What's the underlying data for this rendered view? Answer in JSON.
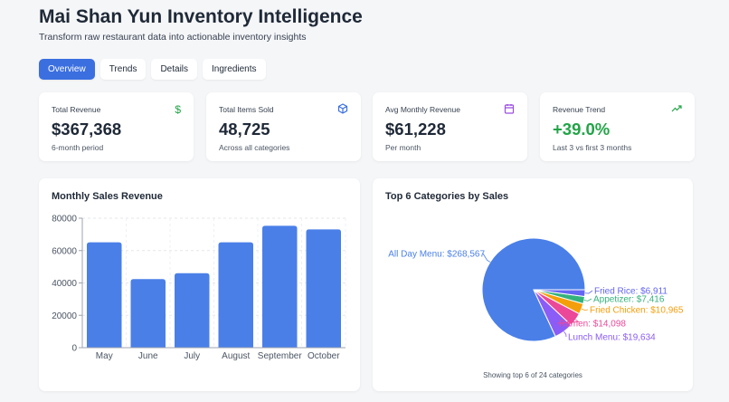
{
  "header": {
    "title": "Mai Shan Yun Inventory Intelligence",
    "subtitle": "Transform raw restaurant data into actionable inventory insights"
  },
  "tabs": [
    {
      "label": "Overview",
      "active": true
    },
    {
      "label": "Trends"
    },
    {
      "label": "Details"
    },
    {
      "label": "Ingredients"
    }
  ],
  "stats": [
    {
      "label": "Total Revenue",
      "value": "$367,368",
      "note": "6-month period",
      "icon": "dollar-icon",
      "color": "#22a447"
    },
    {
      "label": "Total Items Sold",
      "value": "48,725",
      "note": "Across all categories",
      "icon": "box-icon",
      "color": "#3b6fe0"
    },
    {
      "label": "Avg Monthly Revenue",
      "value": "$61,228",
      "note": "Per month",
      "icon": "calendar-icon",
      "color": "#9b4de0"
    },
    {
      "label": "Revenue Trend",
      "value": "+39.0%",
      "note": "Last 3 vs first 3 months",
      "icon": "trending-up-icon",
      "color": "#22a447"
    }
  ],
  "chart_data": [
    {
      "type": "bar",
      "title": "Monthly Sales Revenue",
      "categories": [
        "May",
        "June",
        "July",
        "August",
        "September",
        "October"
      ],
      "values": [
        65100,
        42400,
        46000,
        65100,
        75300,
        73100
      ],
      "ylim": [
        0,
        80000
      ],
      "yticks": [
        "0",
        "20000",
        "40000",
        "60000",
        "80000"
      ],
      "grid": true,
      "color": "#4a7fe8"
    },
    {
      "type": "pie",
      "title": "Top 6 Categories by Sales",
      "footnote": "Showing top 6 of 24 categories",
      "slices": [
        {
          "name": "All Day Menu",
          "value": 268567,
          "label": "All Day Menu: $268,567",
          "color": "#4a7fe8"
        },
        {
          "name": "Lunch Menu",
          "value": 19634,
          "label": "Lunch Menu: $19,634",
          "color": "#8b5cf6"
        },
        {
          "name": "Ramen",
          "value": 14098,
          "label": "Ramen: $14,098",
          "color": "#ec4899"
        },
        {
          "name": "Fried Chicken",
          "value": 10965,
          "label": "Fried Chicken: $10,965",
          "color": "#f59e0b"
        },
        {
          "name": "Appetizer",
          "value": 7416,
          "label": "Appetizer: $7,416",
          "color": "#34b27b"
        },
        {
          "name": "Fried Rice",
          "value": 6911,
          "label": "Fried Rice: $6,911",
          "color": "#6366f1"
        }
      ]
    }
  ]
}
